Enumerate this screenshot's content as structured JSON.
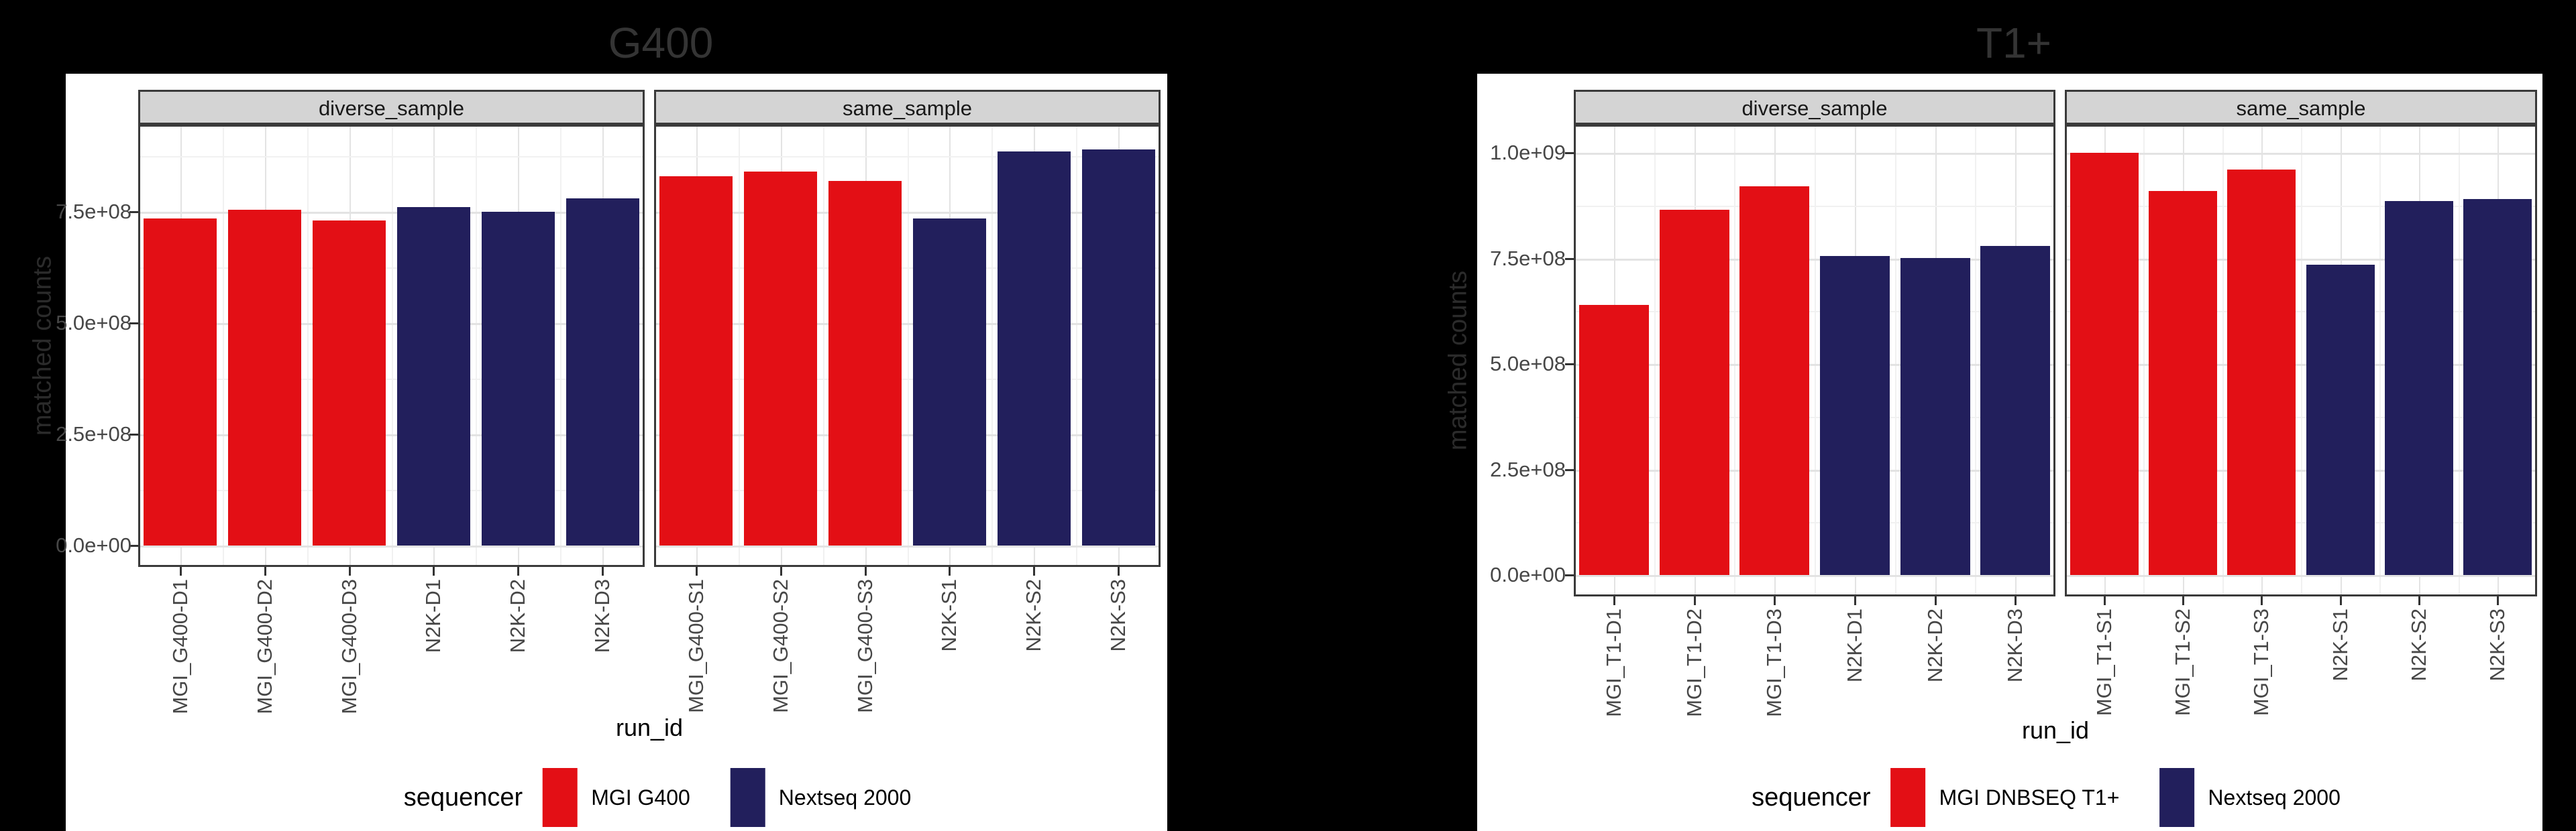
{
  "page": {
    "background_color": "#000000"
  },
  "chart_data": [
    {
      "type": "bar",
      "title": "G400",
      "ylabel": "matched counts",
      "xlabel": "run_id",
      "legend": {
        "title": "sequencer",
        "position": "bottom",
        "items": [
          {
            "label": "MGI G400",
            "color": "#e30f15"
          },
          {
            "label": "Nextseq 2000",
            "color": "#221f5c"
          }
        ]
      },
      "groups": [
        0,
        0,
        0,
        1,
        1,
        1
      ],
      "yticks": [
        {
          "value": 0,
          "label": "0.0e+00"
        },
        {
          "value": 250000000,
          "label": "2.5e+08"
        },
        {
          "value": 500000000,
          "label": "5.0e+08"
        },
        {
          "value": 750000000,
          "label": "7.5e+08"
        }
      ],
      "ylim": [
        0,
        946000000
      ],
      "grid": "major-and-minor",
      "facets": [
        {
          "label": "diverse_sample",
          "categories": [
            "MGI_G400-D1",
            "MGI_G400-D2",
            "MGI_G400-D3",
            "N2K-D1",
            "N2K-D2",
            "N2K-D3"
          ],
          "values": [
            735000000,
            755000000,
            730000000,
            760000000,
            750000000,
            780000000
          ]
        },
        {
          "label": "same_sample",
          "categories": [
            "MGI_G400-S1",
            "MGI_G400-S2",
            "MGI_G400-S3",
            "N2K-S1",
            "N2K-S2",
            "N2K-S3"
          ],
          "values": [
            830000000,
            840000000,
            820000000,
            735000000,
            885000000,
            890000000
          ]
        }
      ]
    },
    {
      "type": "bar",
      "title": "T1+",
      "ylabel": "matched counts",
      "xlabel": "run_id",
      "legend": {
        "title": "sequencer",
        "position": "bottom",
        "items": [
          {
            "label": "MGI DNBSEQ T1+",
            "color": "#e30f15"
          },
          {
            "label": "Nextseq 2000",
            "color": "#221f5c"
          }
        ]
      },
      "groups": [
        0,
        0,
        0,
        1,
        1,
        1
      ],
      "yticks": [
        {
          "value": 0,
          "label": "0.0e+00"
        },
        {
          "value": 250000000,
          "label": "2.5e+08"
        },
        {
          "value": 500000000,
          "label": "5.0e+08"
        },
        {
          "value": 750000000,
          "label": "7.5e+08"
        },
        {
          "value": 1000000000,
          "label": "1.0e+09"
        }
      ],
      "ylim": [
        0,
        1067000000
      ],
      "grid": "major-and-minor",
      "facets": [
        {
          "label": "diverse_sample",
          "categories": [
            "MGI_T1-D1",
            "MGI_T1-D2",
            "MGI_T1-D3",
            "N2K-D1",
            "N2K-D2",
            "N2K-D3"
          ],
          "values": [
            640000000,
            865000000,
            920000000,
            755000000,
            750000000,
            780000000
          ]
        },
        {
          "label": "same_sample",
          "categories": [
            "MGI_T1-S1",
            "MGI_T1-S2",
            "MGI_T1-S3",
            "N2K-S1",
            "N2K-S2",
            "N2K-S3"
          ],
          "values": [
            1000000000,
            910000000,
            960000000,
            735000000,
            885000000,
            890000000
          ]
        }
      ]
    }
  ]
}
